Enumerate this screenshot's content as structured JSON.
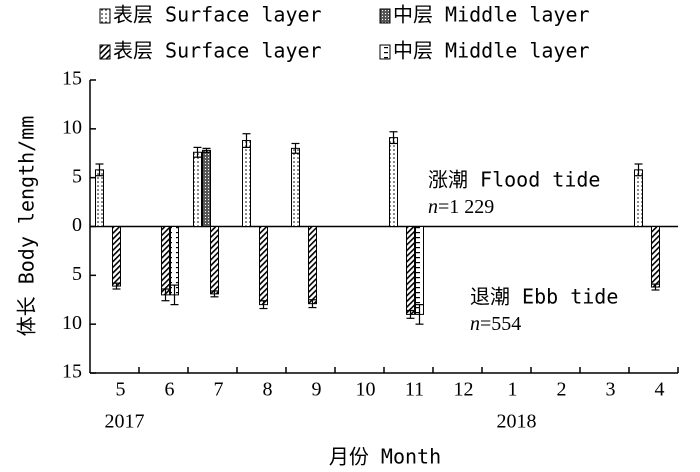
{
  "chart_data": {
    "type": "bar",
    "x_label": "月份 Month",
    "y_label": "体长 Body length/mm",
    "categories": [
      "5",
      "6",
      "7",
      "8",
      "9",
      "10",
      "11",
      "12",
      "1",
      "2",
      "3",
      "4"
    ],
    "years": [
      "2017",
      "2018"
    ],
    "series": [
      {
        "name": "表层 Surface layer",
        "color": "#000000",
        "pattern": "dots",
        "values": [
          5.8,
          null,
          7.6,
          8.8,
          8.0,
          null,
          9.1,
          null,
          null,
          null,
          null,
          5.8
        ],
        "errors": [
          0.6,
          null,
          0.5,
          0.7,
          0.5,
          null,
          0.6,
          null,
          null,
          null,
          null,
          0.6
        ]
      },
      {
        "name": "中层 Middle layer",
        "color": "#000000",
        "pattern": "cross",
        "values": [
          null,
          null,
          7.8,
          null,
          null,
          null,
          null,
          null,
          null,
          null,
          null,
          null
        ],
        "errors": [
          null,
          null,
          0.2,
          null,
          null,
          null,
          null,
          null,
          null,
          null,
          null,
          null
        ]
      },
      {
        "name": "表层 Surface layer",
        "color": "#000000",
        "pattern": "diagonal",
        "values": [
          -6.1,
          -7.0,
          -6.9,
          -8.0,
          -7.9,
          null,
          -9.0,
          null,
          null,
          null,
          null,
          -6.2
        ],
        "errors": [
          0.3,
          0.6,
          0.3,
          0.4,
          0.4,
          null,
          0.4,
          null,
          null,
          null,
          null,
          0.3
        ]
      },
      {
        "name": "中层 Middle layer",
        "color": "#000000",
        "pattern": "dash",
        "values": [
          null,
          -7.0,
          null,
          null,
          null,
          null,
          -9.0,
          null,
          null,
          null,
          null,
          null
        ],
        "errors": [
          null,
          1.0,
          null,
          null,
          null,
          null,
          1.0,
          null,
          null,
          null,
          null,
          null
        ]
      }
    ],
    "annotations": [
      {
        "text": "涨潮 Flood tide",
        "italic": "n",
        "rest": "=1 229"
      },
      {
        "text": "退潮 Ebb tide",
        "italic": "n",
        "rest": "=554"
      }
    ],
    "ylim": [
      -15,
      15
    ],
    "yticks": [
      {
        "value": -15,
        "label": "15"
      },
      {
        "value": -10,
        "label": "10"
      },
      {
        "value": -5,
        "label": "5"
      },
      0,
      5,
      10,
      15
    ]
  }
}
